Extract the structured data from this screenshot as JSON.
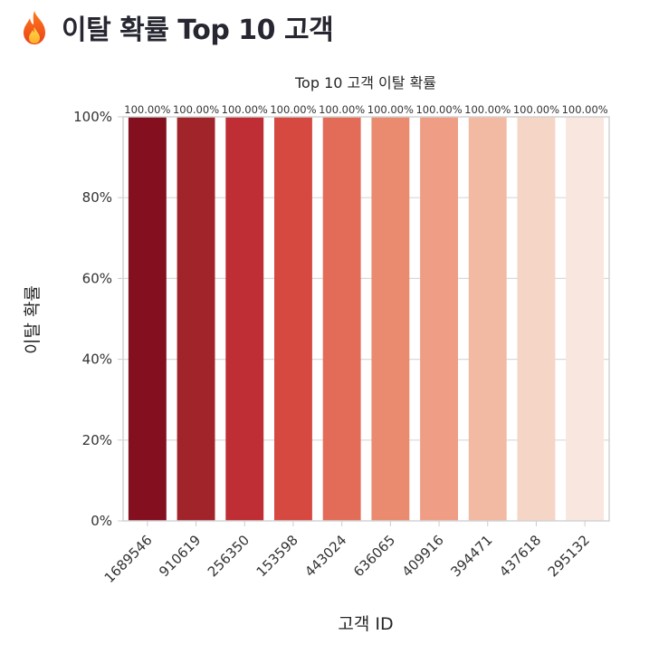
{
  "header": {
    "icon": "fire-icon",
    "title": "이탈 확률 Top 10 고객"
  },
  "chart_data": {
    "type": "bar",
    "title": "Top 10 고객 이탈 확률",
    "xlabel": "고객 ID",
    "ylabel": "이탈 확률",
    "categories": [
      "1689546",
      "910619",
      "256350",
      "153598",
      "443024",
      "636065",
      "409916",
      "394471",
      "437618",
      "295132"
    ],
    "values": [
      1.0,
      1.0,
      1.0,
      1.0,
      1.0,
      1.0,
      1.0,
      1.0,
      1.0,
      1.0
    ],
    "data_labels": [
      "100.00%",
      "100.00%",
      "100.00%",
      "100.00%",
      "100.00%",
      "100.00%",
      "100.00%",
      "100.00%",
      "100.00%",
      "100.00%"
    ],
    "ylim": [
      0,
      1
    ],
    "yticks": [
      0,
      0.2,
      0.4,
      0.6,
      0.8,
      1.0
    ],
    "ytick_labels": [
      "0%",
      "20%",
      "40%",
      "60%",
      "80%",
      "100%"
    ],
    "grid": true,
    "legend": "none",
    "colors": [
      "#830f1f",
      "#a2242b",
      "#be2e34",
      "#d54941",
      "#e36c58",
      "#ea8a6f",
      "#ef9e85",
      "#f2b9a3",
      "#f5d5c6",
      "#f8e6df"
    ]
  }
}
